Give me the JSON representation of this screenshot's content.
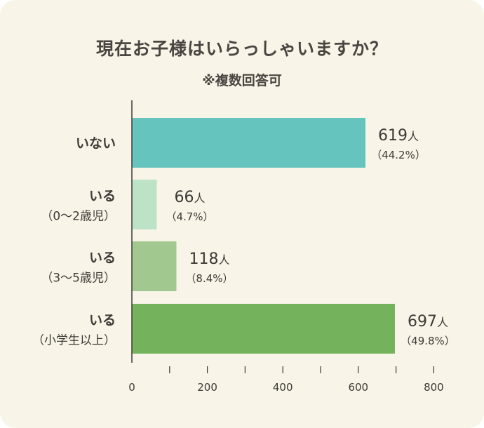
{
  "chart_data": {
    "type": "bar",
    "orientation": "horizontal",
    "title": "現在お子様はいらっしゃいますか？",
    "subtitle": "※複数回答可",
    "categories": [
      {
        "main": "いない",
        "sub": ""
      },
      {
        "main": "いる",
        "sub": "（0〜2歳児）"
      },
      {
        "main": "いる",
        "sub": "（3〜5歳児）"
      },
      {
        "main": "いる",
        "sub": "（小学生以上）"
      }
    ],
    "values": [
      619,
      66,
      118,
      697
    ],
    "percent_labels": [
      "（44.2%）",
      "（4.7%）",
      "（8.4%）",
      "（49.8%）"
    ],
    "unit": "人",
    "colors": [
      "#66c4be",
      "#bde3c7",
      "#a1c88e",
      "#74b35b"
    ],
    "xlim": [
      0,
      800
    ],
    "xticks": [
      0,
      200,
      400,
      600,
      800
    ],
    "grid": false
  }
}
